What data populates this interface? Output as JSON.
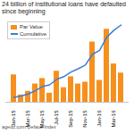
{
  "chart_data": {
    "type": "bar",
    "title": "24 billion of institutional loans have defaulted since beginning",
    "source": "agedc.com Default Index",
    "categories": [
      "Jan-15",
      null,
      "Mar-15",
      null,
      "May-15",
      null,
      "Jul-15",
      null,
      "Sep-15",
      null,
      "Nov-15",
      null,
      "Jan-16",
      null,
      "Mar-16",
      null
    ],
    "series": [
      {
        "name": "Par Value",
        "type": "bar",
        "color": "#f5901e",
        "values": [
          1.5,
          0.4,
          0.6,
          1.0,
          1.3,
          0.5,
          1.7,
          0.8,
          1.4,
          1.0,
          1.1,
          3.3,
          1.2,
          4.0,
          2.1,
          1.6
        ]
      },
      {
        "name": "Cumulative",
        "type": "line",
        "color": "#3a7fd5",
        "axis": "y2",
        "values": [
          1.5,
          1.9,
          2.5,
          3.5,
          4.8,
          5.3,
          7.0,
          7.8,
          9.2,
          10.2,
          11.3,
          14.6,
          15.8,
          19.8,
          21.9,
          23.5
        ]
      }
    ],
    "ylim": [
      0,
      4.5
    ],
    "y2lim": [
      0,
      25
    ],
    "legend": "upper left",
    "tick_labels": "x"
  }
}
